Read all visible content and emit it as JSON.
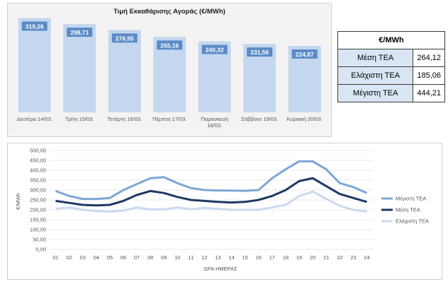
{
  "charts": {
    "price_bar": {
      "title": "Τιμή Εκκαθάρισης Αγοράς (€/MWh)"
    },
    "tea_lines": {
      "ylabel": "€/MWh",
      "xlabel": "ΩΡΑ ΗΜΕΡΑΣ"
    }
  },
  "table": {
    "header": "€/MWh",
    "rows": [
      {
        "label": "Μέση ΤΕΑ",
        "value": "264,12"
      },
      {
        "label": "Ελάχιστη ΤΕΑ",
        "value": "185,06"
      },
      {
        "label": "Μέγιστη ΤΕΑ",
        "value": "444,21"
      }
    ]
  },
  "chart_data": [
    {
      "type": "bar",
      "title": "Τιμή Εκκαθάρισης Αγοράς (€/MWh)",
      "categories": [
        [
          "Δευτέρα 14/03."
        ],
        [
          "Τρίτη 15/03."
        ],
        [
          "Τετάρτη 16/03."
        ],
        [
          "Πέμπτη 17/03."
        ],
        [
          "Παρασκευή",
          "18/03."
        ],
        [
          "Σάββατο 19/03."
        ],
        [
          "Κυριακή 20/03."
        ]
      ],
      "values": [
        319.26,
        298.71,
        278.95,
        255.16,
        240.32,
        231.56,
        224.87
      ],
      "value_labels": [
        "319,26",
        "298,71",
        "278,95",
        "255,16",
        "240,32",
        "231,56",
        "224,87"
      ],
      "ylim": [
        0,
        330
      ],
      "bar_color": "#c5d7ef",
      "label_color": "#5b8bc6"
    },
    {
      "type": "line",
      "xlabel": "ΩΡΑ ΗΜΕΡΑΣ",
      "ylabel": "€/MWh",
      "x": [
        "01",
        "02",
        "03",
        "04",
        "05",
        "06",
        "07",
        "08",
        "09",
        "10",
        "11",
        "12",
        "13",
        "14",
        "15",
        "16",
        "17",
        "18",
        "19",
        "20",
        "21",
        "22",
        "23",
        "24"
      ],
      "ylim": [
        0,
        500
      ],
      "yticks": [
        "0,00",
        "50,00",
        "100,00",
        "150,00",
        "200,00",
        "250,00",
        "300,00",
        "350,00",
        "400,00",
        "450,00",
        "500,00"
      ],
      "legend_position": "right",
      "grid": true,
      "series": [
        {
          "name": "Μέγιστη ΤΕΑ",
          "color": "#7ba7d6",
          "values": [
            295,
            270,
            255,
            255,
            260,
            300,
            330,
            360,
            365,
            335,
            310,
            300,
            298,
            297,
            296,
            300,
            360,
            405,
            445,
            445,
            405,
            335,
            315,
            285
          ]
        },
        {
          "name": "Μέση ΤΕΑ",
          "color": "#1f3864",
          "values": [
            245,
            235,
            225,
            222,
            225,
            245,
            275,
            295,
            285,
            265,
            250,
            245,
            240,
            237,
            240,
            250,
            270,
            300,
            345,
            360,
            320,
            280,
            260,
            240
          ]
        },
        {
          "name": "Ελάχιστη ΤΕΑ",
          "color": "#c9daf0",
          "values": [
            205,
            212,
            200,
            194,
            190,
            196,
            212,
            202,
            202,
            212,
            203,
            210,
            205,
            200,
            200,
            200,
            212,
            225,
            270,
            292,
            255,
            220,
            200,
            192
          ]
        }
      ]
    }
  ]
}
